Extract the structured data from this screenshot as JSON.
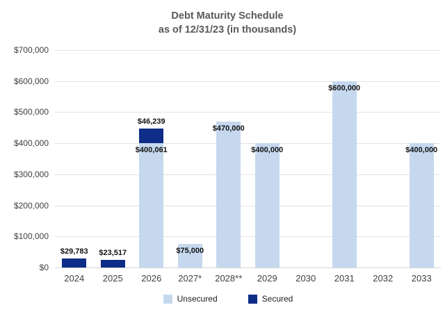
{
  "chart_data": {
    "type": "bar",
    "stacked": true,
    "title": "Debt Maturity Schedule",
    "subtitle": "as of 12/31/23 (in thousands)",
    "categories": [
      "2024",
      "2025",
      "2026",
      "2027*",
      "2028**",
      "2029",
      "2030",
      "2031",
      "2032",
      "2033"
    ],
    "series": [
      {
        "name": "Unsecured",
        "color": "#c5d8ee",
        "label_position": "inside-top",
        "values": [
          0,
          0,
          400061,
          75000,
          470000,
          400000,
          0,
          600000,
          0,
          400000
        ]
      },
      {
        "name": "Secured",
        "color": "#0d2d87",
        "label_position": "above",
        "values": [
          29783,
          23517,
          46239,
          0,
          0,
          0,
          0,
          0,
          0,
          0
        ]
      }
    ],
    "value_prefix": "$",
    "ylim": [
      0,
      700000
    ],
    "ytick_step": 100000,
    "ytick_labels": [
      "$0",
      "$100,000",
      "$200,000",
      "$300,000",
      "$400,000",
      "$500,000",
      "$600,000",
      "$700,000"
    ],
    "grid": true,
    "legend_position": "bottom"
  }
}
